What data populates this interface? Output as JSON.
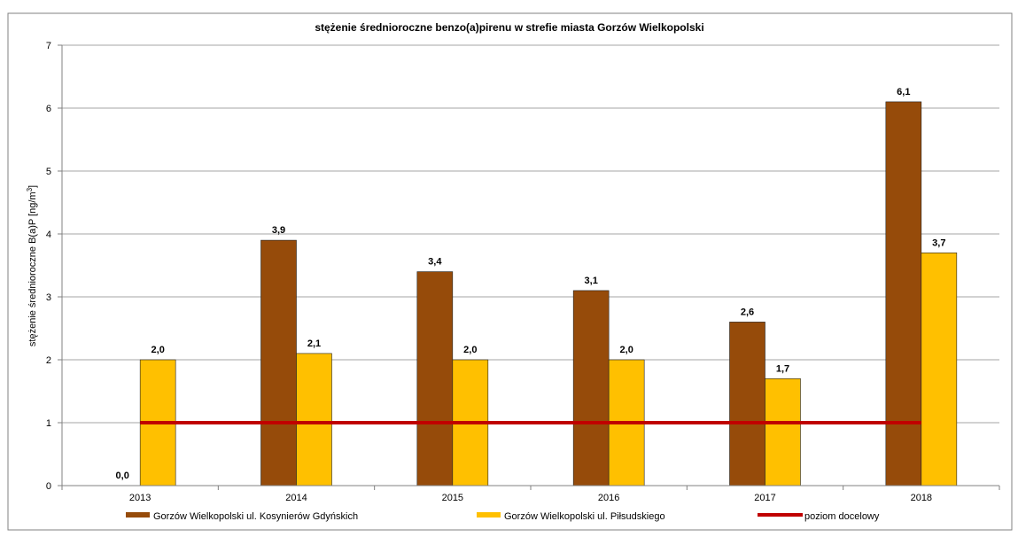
{
  "chart_data": {
    "type": "bar",
    "title": "stężenie średnioroczne benzo(a)pirenu w strefie miasta Gorzów Wielkopolski",
    "ylabel_main": "stężenie średnioroczne B(a)P [ng/m",
    "ylabel_sup": "3",
    "ylabel_close": "]",
    "xlabel": "",
    "ylim": [
      0,
      7
    ],
    "yticks": [
      "0",
      "1",
      "2",
      "3",
      "4",
      "5",
      "6",
      "7"
    ],
    "categories": [
      "2013",
      "2014",
      "2015",
      "2016",
      "2017",
      "2018"
    ],
    "series": [
      {
        "name": "Gorzów Wielkopolski ul. Kosynierów Gdyńskich",
        "values": [
          0.0,
          3.9,
          3.4,
          3.1,
          2.6,
          6.1
        ],
        "labels": [
          "0,0",
          "3,9",
          "3,4",
          "3,1",
          "2,6",
          "6,1"
        ],
        "color": "#964B0A"
      },
      {
        "name": "Gorzów Wielkopolski ul. Piłsudskiego",
        "values": [
          2.0,
          2.1,
          2.0,
          2.0,
          1.7,
          3.7
        ],
        "labels": [
          "2,0",
          "2,1",
          "2,0",
          "2,0",
          "1,7",
          "3,7"
        ],
        "color": "#FFC000"
      }
    ],
    "target_line": {
      "name": "poziom docelowy",
      "value": 1,
      "color": "#C00000"
    },
    "grid": true,
    "legend_position": "bottom"
  }
}
